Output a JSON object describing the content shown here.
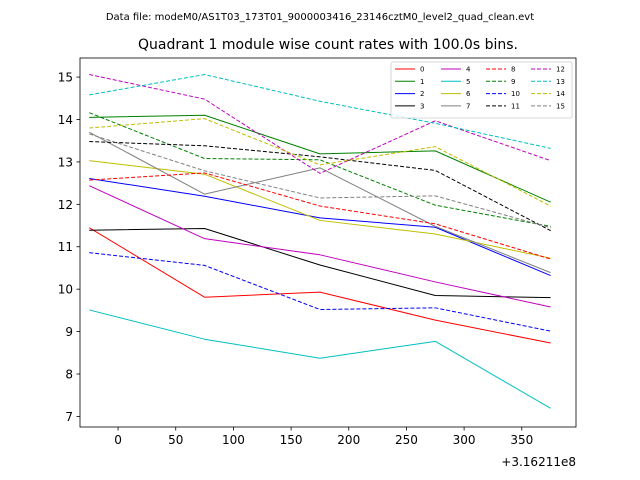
{
  "suptitle": "Data file: modeM0/AS1T03_173T01_9000003416_23146cztM0_level2_quad_clean.evt",
  "chart_data": {
    "type": "line",
    "title": "Quadrant 1 module wise count rates with 100.0s bins.",
    "xlabel": "",
    "ylabel": "",
    "x_offset_label": "+3.16211e8",
    "xlim": [
      -33,
      397
    ],
    "ylim": [
      6.75,
      15.45
    ],
    "x_ticks": [
      0,
      50,
      100,
      150,
      200,
      250,
      300,
      350
    ],
    "y_ticks": [
      7,
      8,
      9,
      10,
      11,
      12,
      13,
      14,
      15
    ],
    "x": [
      -25,
      75,
      175,
      275,
      375
    ],
    "legend_position": "top-right",
    "series": [
      {
        "name": "0",
        "color": "#ff0000",
        "style": "solid",
        "values": [
          11.45,
          9.81,
          9.93,
          9.27,
          8.73
        ]
      },
      {
        "name": "1",
        "color": "#008000",
        "style": "solid",
        "values": [
          14.05,
          14.1,
          13.19,
          13.26,
          12.05
        ]
      },
      {
        "name": "2",
        "color": "#0000ff",
        "style": "solid",
        "values": [
          12.61,
          12.19,
          11.68,
          11.46,
          10.32
        ]
      },
      {
        "name": "3",
        "color": "#000000",
        "style": "solid",
        "values": [
          11.39,
          11.43,
          10.57,
          9.85,
          9.8
        ]
      },
      {
        "name": "4",
        "color": "#c000c0",
        "style": "solid",
        "values": [
          12.44,
          11.19,
          10.81,
          10.17,
          9.58
        ]
      },
      {
        "name": "5",
        "color": "#00bfbf",
        "style": "solid",
        "values": [
          9.51,
          8.82,
          8.37,
          8.77,
          7.19
        ]
      },
      {
        "name": "6",
        "color": "#bfbf00",
        "style": "solid",
        "values": [
          13.03,
          12.71,
          11.62,
          11.3,
          10.73
        ]
      },
      {
        "name": "7",
        "color": "#808080",
        "style": "solid",
        "values": [
          13.7,
          12.24,
          12.86,
          11.48,
          10.39
        ]
      },
      {
        "name": "8",
        "color": "#ff0000",
        "style": "dashed",
        "values": [
          12.57,
          12.74,
          11.96,
          11.54,
          10.71
        ]
      },
      {
        "name": "9",
        "color": "#008000",
        "style": "dashed",
        "values": [
          14.16,
          13.08,
          13.05,
          11.98,
          11.48
        ]
      },
      {
        "name": "10",
        "color": "#0000ff",
        "style": "dashed",
        "values": [
          10.86,
          10.56,
          9.52,
          9.56,
          9.01
        ]
      },
      {
        "name": "11",
        "color": "#000000",
        "style": "dashed",
        "values": [
          13.48,
          13.38,
          13.12,
          12.8,
          11.38
        ]
      },
      {
        "name": "12",
        "color": "#c000c0",
        "style": "dashed",
        "values": [
          15.06,
          14.48,
          12.73,
          13.97,
          13.03
        ]
      },
      {
        "name": "13",
        "color": "#00bfbf",
        "style": "dashed",
        "values": [
          14.58,
          15.06,
          14.43,
          13.91,
          13.32
        ]
      },
      {
        "name": "14",
        "color": "#bfbf00",
        "style": "dashed",
        "values": [
          13.8,
          14.02,
          12.93,
          13.36,
          11.96
        ]
      },
      {
        "name": "15",
        "color": "#808080",
        "style": "dashed",
        "values": [
          13.66,
          12.79,
          12.15,
          12.2,
          11.45
        ]
      }
    ]
  }
}
